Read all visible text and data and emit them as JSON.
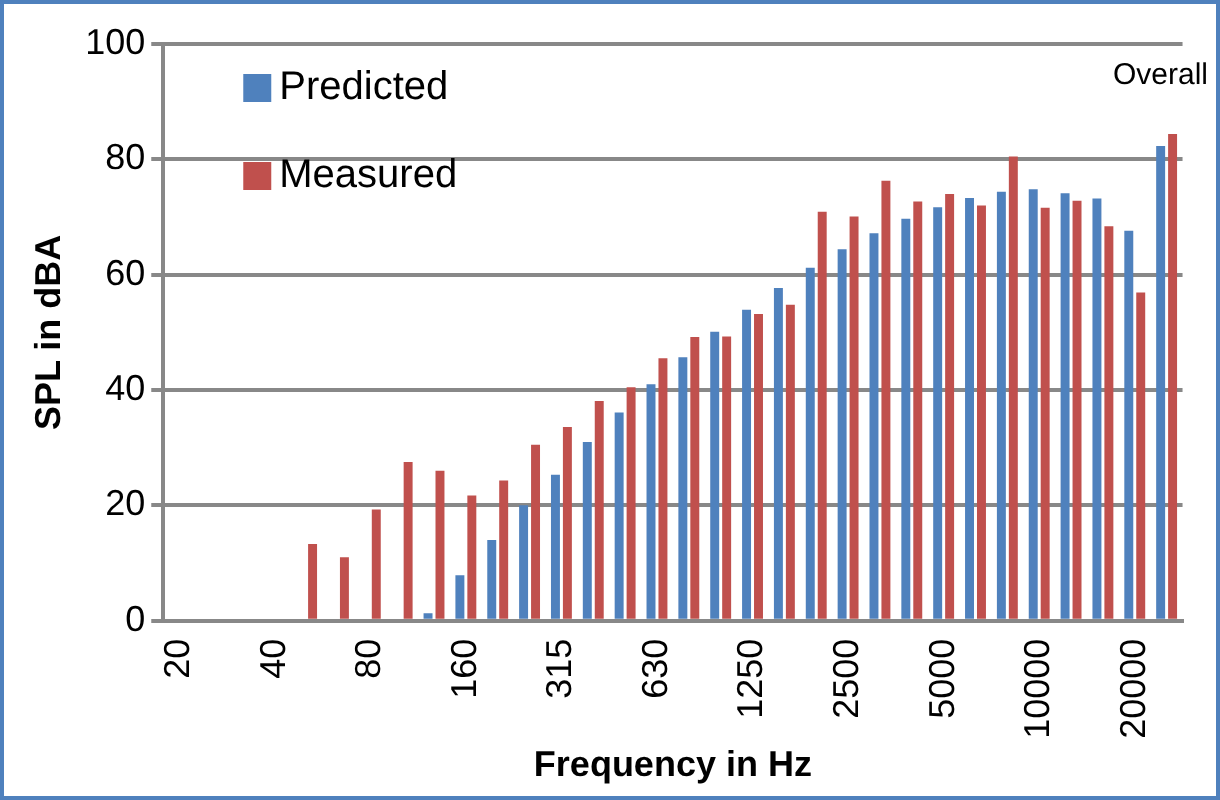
{
  "chart_data": {
    "type": "bar",
    "xlabel": "Frequency in Hz",
    "ylabel": "SPL in dBA",
    "categories": [
      "20",
      null,
      null,
      "40",
      null,
      null,
      "80",
      null,
      null,
      "160",
      null,
      null,
      "315",
      null,
      null,
      "630",
      null,
      null,
      "1250",
      null,
      null,
      "2500",
      null,
      null,
      "5000",
      null,
      null,
      "10000",
      null,
      null,
      "20000",
      null
    ],
    "series": [
      {
        "name": "Predicted",
        "color": "#4f81bd",
        "values": [
          0,
          0,
          0,
          0,
          0,
          0,
          0,
          0,
          1.3,
          7.9,
          14,
          20,
          25.3,
          31,
          36.1,
          41,
          45.7,
          50.1,
          53.9,
          57.7,
          61.2,
          64.4,
          67.2,
          69.7,
          71.7,
          73.3,
          74.4,
          74.8,
          74.1,
          73.2,
          67.6,
          82.3
        ]
      },
      {
        "name": "Measured",
        "color": "#c0504d",
        "values": [
          0,
          0,
          0,
          0,
          13.3,
          11,
          19.3,
          27.5,
          26,
          21.7,
          24.3,
          30.5,
          33.6,
          38.1,
          40.5,
          45.5,
          49.2,
          49.3,
          53.2,
          54.8,
          70.9,
          70.1,
          76.3,
          72.7,
          74,
          72,
          80.5,
          71.6,
          72.8,
          68.4,
          56.9,
          84.4
        ]
      }
    ],
    "ylim": [
      0,
      100
    ],
    "yticks": [
      0,
      20,
      40,
      60,
      80,
      100
    ],
    "grid": "y",
    "legend": "top left",
    "annotations": [
      "Overall"
    ]
  }
}
